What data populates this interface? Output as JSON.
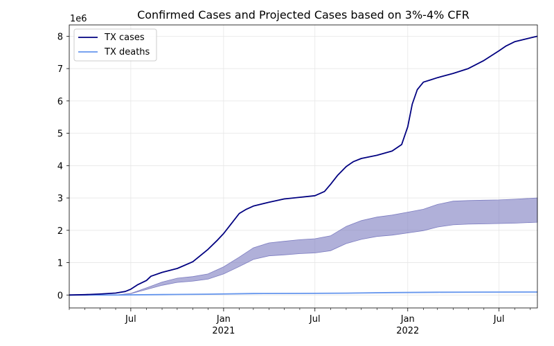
{
  "chart_data": {
    "type": "line",
    "title": "Confirmed Cases and Projected Cases based on 3%-4% CFR",
    "y_offset_label": "1e6",
    "xlabel": "",
    "ylabel": "",
    "xlim": [
      "2020-03-01",
      "2022-09-15"
    ],
    "ylim": [
      -0.4,
      8.35
    ],
    "y_ticks": [
      0,
      1,
      2,
      3,
      4,
      5,
      6,
      7,
      8
    ],
    "x_major_ticks": [
      {
        "date": "2020-07-01",
        "label": "Jul",
        "sublabel": ""
      },
      {
        "date": "2021-01-01",
        "label": "Jan",
        "sublabel": "2021"
      },
      {
        "date": "2021-07-01",
        "label": "Jul",
        "sublabel": ""
      },
      {
        "date": "2022-01-01",
        "label": "Jan",
        "sublabel": "2022"
      },
      {
        "date": "2022-07-01",
        "label": "Jul",
        "sublabel": ""
      }
    ],
    "x_minor_ticks": [
      "2020-03-01",
      "2020-04-01",
      "2020-05-01",
      "2020-06-01",
      "2020-08-01",
      "2020-09-01",
      "2020-10-01",
      "2020-11-01",
      "2020-12-01",
      "2021-02-01",
      "2021-03-01",
      "2021-04-01",
      "2021-05-01",
      "2021-06-01",
      "2021-08-01",
      "2021-09-01",
      "2021-10-01",
      "2021-11-01",
      "2021-12-01",
      "2022-02-01",
      "2022-03-01",
      "2022-04-01",
      "2022-05-01",
      "2022-06-01",
      "2022-08-01",
      "2022-09-01"
    ],
    "grid": true,
    "legend_position": "top-left",
    "colors": {
      "cases": "#000080",
      "deaths": "#6495ed",
      "band": "#7b7bc0"
    },
    "series": [
      {
        "name": "TX cases",
        "x": [
          "2020-03-01",
          "2020-04-01",
          "2020-05-01",
          "2020-06-01",
          "2020-06-20",
          "2020-07-01",
          "2020-07-15",
          "2020-08-01",
          "2020-08-10",
          "2020-09-01",
          "2020-10-01",
          "2020-11-01",
          "2020-12-01",
          "2020-12-20",
          "2021-01-01",
          "2021-01-15",
          "2021-02-01",
          "2021-02-15",
          "2021-03-01",
          "2021-04-01",
          "2021-05-01",
          "2021-06-01",
          "2021-07-01",
          "2021-07-20",
          "2021-08-01",
          "2021-08-15",
          "2021-09-01",
          "2021-09-15",
          "2021-10-01",
          "2021-11-01",
          "2021-12-01",
          "2021-12-20",
          "2022-01-01",
          "2022-01-10",
          "2022-01-20",
          "2022-02-01",
          "2022-02-15",
          "2022-03-01",
          "2022-04-01",
          "2022-05-01",
          "2022-06-01",
          "2022-07-01",
          "2022-07-15",
          "2022-08-01",
          "2022-09-01",
          "2022-09-15"
        ],
        "values": [
          0.0,
          0.01,
          0.03,
          0.06,
          0.11,
          0.18,
          0.32,
          0.45,
          0.58,
          0.7,
          0.82,
          1.03,
          1.41,
          1.7,
          1.9,
          2.18,
          2.52,
          2.65,
          2.75,
          2.87,
          2.97,
          3.02,
          3.07,
          3.2,
          3.42,
          3.7,
          3.97,
          4.12,
          4.22,
          4.32,
          4.45,
          4.65,
          5.2,
          5.9,
          6.35,
          6.58,
          6.65,
          6.72,
          6.85,
          7.0,
          7.25,
          7.55,
          7.7,
          7.83,
          7.95,
          8.0
        ]
      },
      {
        "name": "TX deaths",
        "x": [
          "2020-03-01",
          "2020-06-01",
          "2020-09-01",
          "2020-12-01",
          "2021-03-01",
          "2021-06-01",
          "2021-09-01",
          "2021-12-01",
          "2022-03-01",
          "2022-06-01",
          "2022-09-15"
        ],
        "values": [
          0.0,
          0.0,
          0.013,
          0.025,
          0.045,
          0.05,
          0.058,
          0.074,
          0.085,
          0.089,
          0.092
        ]
      }
    ],
    "band": {
      "x": [
        "2020-03-01",
        "2020-06-01",
        "2020-07-01",
        "2020-08-01",
        "2020-09-01",
        "2020-10-01",
        "2020-11-01",
        "2020-12-01",
        "2021-01-01",
        "2021-02-01",
        "2021-03-01",
        "2021-04-01",
        "2021-05-01",
        "2021-06-01",
        "2021-07-01",
        "2021-08-01",
        "2021-09-01",
        "2021-10-01",
        "2021-11-01",
        "2021-12-01",
        "2022-01-01",
        "2022-02-01",
        "2022-03-01",
        "2022-04-01",
        "2022-05-01",
        "2022-06-01",
        "2022-07-01",
        "2022-08-01",
        "2022-09-15"
      ],
      "upper": [
        0.0,
        0.0,
        0.05,
        0.22,
        0.4,
        0.52,
        0.57,
        0.65,
        0.87,
        1.17,
        1.46,
        1.61,
        1.66,
        1.71,
        1.74,
        1.83,
        2.12,
        2.3,
        2.41,
        2.47,
        2.56,
        2.65,
        2.8,
        2.9,
        2.92,
        2.93,
        2.94,
        2.96,
        3.0
      ],
      "lower": [
        0.0,
        0.0,
        0.04,
        0.17,
        0.3,
        0.39,
        0.43,
        0.49,
        0.65,
        0.88,
        1.1,
        1.21,
        1.24,
        1.28,
        1.3,
        1.37,
        1.59,
        1.72,
        1.81,
        1.85,
        1.92,
        1.99,
        2.1,
        2.17,
        2.19,
        2.2,
        2.21,
        2.22,
        2.25
      ]
    }
  }
}
